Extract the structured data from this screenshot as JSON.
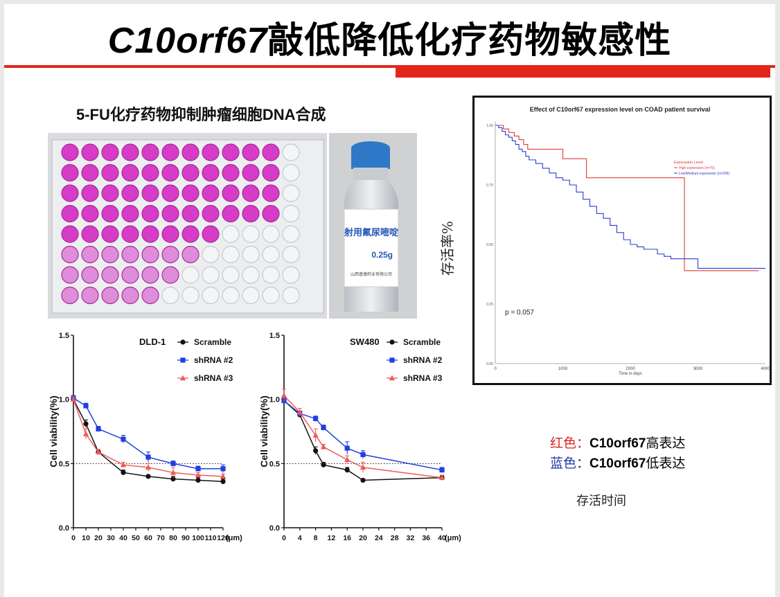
{
  "slide": {
    "title_gene": "C10orf67",
    "title_rest": "敲低降低化疗药物敏感性",
    "plate_caption": "5-FU化疗药物抑制肿瘤细胞DNA合成",
    "vial_label_main": "射用氟尿嘧啶",
    "vial_label_dose": "0.25g",
    "vial_label_small": "山西普德药业有限公司",
    "km_ylabel": "存活率%",
    "legend_red_prefix": "红色：",
    "legend_red_gene": "C10orf67",
    "legend_red_suffix": "高表达",
    "legend_blue_prefix": "蓝色：",
    "legend_blue_gene": "C10orf67",
    "legend_blue_suffix": "低表达",
    "survival_time_label": "存活时间"
  },
  "colors": {
    "accent_red": "#e2261c",
    "well_pink": "#d63cc8",
    "scramble": "#111111",
    "shrna2": "#1f3fe0",
    "shrna3": "#ef5a5a",
    "km_high": "#e03a3a",
    "km_low": "#2a3ccf"
  },
  "chart_data": [
    {
      "type": "line",
      "title": "Effect of C10orf67 expression level on COAD patient survival",
      "xlabel": "Time in days",
      "ylabel": "",
      "xlim": [
        0,
        4000
      ],
      "ylim": [
        0,
        1
      ],
      "xticks": [
        "0",
        "1000",
        "2000",
        "3000",
        "4000"
      ],
      "yticks": [
        "0.00",
        "0.25",
        "0.50",
        "0.75",
        "1.00"
      ],
      "legend_title": "Expression Level",
      "legend_position": "top-right",
      "annotation": "p = 0.057",
      "series": [
        {
          "name": "High expression (n=70)",
          "step": true,
          "x": [
            0,
            60,
            120,
            200,
            280,
            350,
            420,
            480,
            530,
            700,
            1000,
            1350,
            2800,
            2800,
            3900
          ],
          "y": [
            1.0,
            1.0,
            0.985,
            0.97,
            0.955,
            0.94,
            0.92,
            0.9,
            0.9,
            0.9,
            0.86,
            0.78,
            0.78,
            0.39,
            0.39
          ]
        },
        {
          "name": "Low/Medium-expression (n=209)",
          "step": true,
          "x": [
            0,
            50,
            100,
            150,
            200,
            250,
            300,
            350,
            400,
            450,
            500,
            600,
            700,
            800,
            900,
            1000,
            1100,
            1200,
            1300,
            1400,
            1500,
            1600,
            1700,
            1800,
            1900,
            2000,
            2100,
            2200,
            2300,
            2400,
            2500,
            2600,
            2800,
            3000,
            3200,
            3500,
            4000
          ],
          "y": [
            1.0,
            0.99,
            0.975,
            0.96,
            0.95,
            0.935,
            0.92,
            0.9,
            0.89,
            0.87,
            0.855,
            0.84,
            0.82,
            0.8,
            0.78,
            0.77,
            0.75,
            0.72,
            0.69,
            0.66,
            0.63,
            0.61,
            0.58,
            0.55,
            0.52,
            0.5,
            0.49,
            0.48,
            0.48,
            0.46,
            0.45,
            0.44,
            0.44,
            0.4,
            0.4,
            0.4,
            0.4
          ]
        }
      ]
    },
    {
      "type": "line",
      "title": "DLD-1",
      "xlabel": "(μm)",
      "ylabel": "Cell viability(%)",
      "ylim": [
        0,
        1.5
      ],
      "xlim": [
        0,
        120
      ],
      "xticks": [
        "0",
        "10",
        "20",
        "30",
        "40",
        "50",
        "60",
        "70",
        "80",
        "90",
        "100",
        "110",
        "120"
      ],
      "yticks": [
        "0.0",
        "0.5",
        "1.0",
        "1.5"
      ],
      "reference_line": 0.5,
      "legend_position": "top-right",
      "x": [
        0,
        10,
        20,
        40,
        60,
        80,
        100,
        120
      ],
      "series": [
        {
          "name": "Scramble",
          "marker": "circle",
          "values": [
            1.0,
            0.81,
            0.59,
            0.43,
            0.4,
            0.38,
            0.37,
            0.36
          ],
          "err": [
            0.02,
            0.03,
            0.02,
            0.02,
            0.01,
            0.02,
            0.02,
            0.02
          ]
        },
        {
          "name": "shRNA #2",
          "marker": "square",
          "values": [
            1.01,
            0.95,
            0.77,
            0.69,
            0.55,
            0.5,
            0.46,
            0.46
          ],
          "err": [
            0.02,
            0.02,
            0.02,
            0.03,
            0.04,
            0.02,
            0.02,
            0.03
          ]
        },
        {
          "name": "shRNA #3",
          "marker": "triangle",
          "values": [
            1.0,
            0.73,
            0.59,
            0.49,
            0.47,
            0.43,
            0.41,
            0.4
          ],
          "err": [
            0.02,
            0.04,
            0.02,
            0.02,
            0.03,
            0.04,
            0.02,
            0.02
          ]
        }
      ]
    },
    {
      "type": "line",
      "title": "SW480",
      "xlabel": "(μm)",
      "ylabel": "Cell viability(%)",
      "ylim": [
        0,
        1.5
      ],
      "xlim": [
        0,
        40
      ],
      "xticks": [
        "0",
        "4",
        "8",
        "12",
        "16",
        "20",
        "24",
        "28",
        "32",
        "36",
        "40"
      ],
      "yticks": [
        "0.0",
        "0.5",
        "1.0",
        "1.5"
      ],
      "reference_line": 0.5,
      "legend_position": "top-right",
      "x": [
        0,
        4,
        8,
        10,
        16,
        20,
        40
      ],
      "series": [
        {
          "name": "Scramble",
          "marker": "circle",
          "values": [
            0.99,
            0.88,
            0.6,
            0.49,
            0.45,
            0.37,
            0.39
          ],
          "err": [
            0.02,
            0.02,
            0.03,
            0.02,
            0.02,
            0.01,
            0.02
          ]
        },
        {
          "name": "shRNA #2",
          "marker": "square",
          "values": [
            0.99,
            0.89,
            0.85,
            0.78,
            0.62,
            0.57,
            0.45
          ],
          "err": [
            0.02,
            0.02,
            0.02,
            0.02,
            0.05,
            0.03,
            0.02
          ]
        },
        {
          "name": "shRNA #3",
          "marker": "triangle",
          "values": [
            1.03,
            0.9,
            0.72,
            0.63,
            0.53,
            0.47,
            0.39
          ],
          "err": [
            0.05,
            0.03,
            0.05,
            0.02,
            0.03,
            0.04,
            0.02
          ]
        }
      ]
    }
  ]
}
